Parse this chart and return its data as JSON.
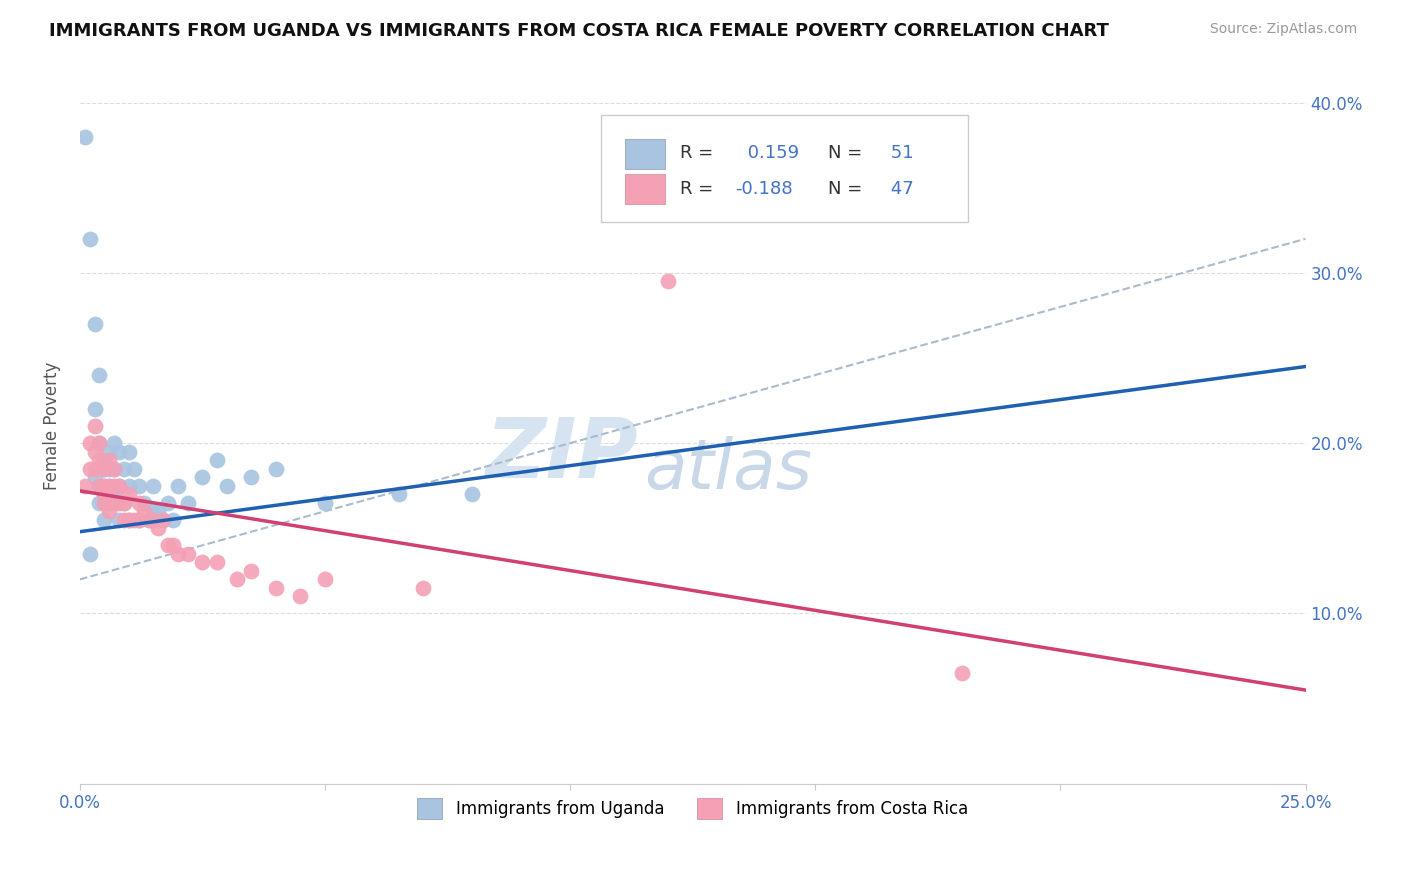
{
  "title": "IMMIGRANTS FROM UGANDA VS IMMIGRANTS FROM COSTA RICA FEMALE POVERTY CORRELATION CHART",
  "source": "Source: ZipAtlas.com",
  "ylabel": "Female Poverty",
  "y_ticks": [
    0.0,
    0.1,
    0.2,
    0.3,
    0.4
  ],
  "y_tick_labels": [
    "",
    "10.0%",
    "20.0%",
    "30.0%",
    "40.0%"
  ],
  "xlim": [
    0.0,
    0.25
  ],
  "ylim": [
    0.0,
    0.42
  ],
  "uganda_color": "#a8c4e0",
  "costa_rica_color": "#f4a0b5",
  "uganda_R": 0.159,
  "uganda_N": 51,
  "costa_rica_R": -0.188,
  "costa_rica_N": 47,
  "trend_line_color_gray": "#aabbcc",
  "trend_line_color_blue": "#2060b0",
  "trend_line_color_pink": "#d04070",
  "watermark_zip": "ZIP",
  "watermark_atlas": "atlas",
  "watermark_color": "#d5e4f0",
  "legend_label_uganda": "Immigrants from Uganda",
  "legend_label_costa_rica": "Immigrants from Costa Rica",
  "background_color": "#ffffff",
  "grid_color": "#dddddd",
  "uganda_x": [
    0.001,
    0.002,
    0.002,
    0.003,
    0.003,
    0.003,
    0.004,
    0.004,
    0.004,
    0.004,
    0.005,
    0.005,
    0.005,
    0.005,
    0.005,
    0.006,
    0.006,
    0.006,
    0.006,
    0.007,
    0.007,
    0.007,
    0.008,
    0.008,
    0.008,
    0.009,
    0.009,
    0.01,
    0.01,
    0.01,
    0.011,
    0.012,
    0.012,
    0.013,
    0.014,
    0.015,
    0.015,
    0.016,
    0.017,
    0.018,
    0.019,
    0.02,
    0.022,
    0.025,
    0.028,
    0.03,
    0.035,
    0.04,
    0.05,
    0.065,
    0.08
  ],
  "uganda_y": [
    0.38,
    0.32,
    0.135,
    0.27,
    0.22,
    0.18,
    0.24,
    0.2,
    0.175,
    0.165,
    0.19,
    0.185,
    0.175,
    0.165,
    0.155,
    0.195,
    0.185,
    0.175,
    0.165,
    0.2,
    0.185,
    0.17,
    0.195,
    0.175,
    0.155,
    0.185,
    0.165,
    0.195,
    0.175,
    0.155,
    0.185,
    0.175,
    0.155,
    0.165,
    0.155,
    0.175,
    0.16,
    0.16,
    0.155,
    0.165,
    0.155,
    0.175,
    0.165,
    0.18,
    0.19,
    0.175,
    0.18,
    0.185,
    0.165,
    0.17,
    0.17
  ],
  "costa_rica_x": [
    0.001,
    0.002,
    0.002,
    0.003,
    0.003,
    0.003,
    0.004,
    0.004,
    0.004,
    0.005,
    0.005,
    0.005,
    0.005,
    0.006,
    0.006,
    0.006,
    0.007,
    0.007,
    0.007,
    0.008,
    0.008,
    0.009,
    0.009,
    0.01,
    0.01,
    0.011,
    0.012,
    0.012,
    0.013,
    0.014,
    0.015,
    0.016,
    0.017,
    0.018,
    0.019,
    0.02,
    0.022,
    0.025,
    0.028,
    0.032,
    0.035,
    0.04,
    0.045,
    0.05,
    0.07,
    0.12,
    0.18
  ],
  "costa_rica_y": [
    0.175,
    0.2,
    0.185,
    0.21,
    0.195,
    0.185,
    0.2,
    0.19,
    0.175,
    0.185,
    0.175,
    0.17,
    0.165,
    0.19,
    0.175,
    0.16,
    0.185,
    0.175,
    0.165,
    0.175,
    0.165,
    0.165,
    0.155,
    0.17,
    0.155,
    0.155,
    0.165,
    0.155,
    0.16,
    0.155,
    0.155,
    0.15,
    0.155,
    0.14,
    0.14,
    0.135,
    0.135,
    0.13,
    0.13,
    0.12,
    0.125,
    0.115,
    0.11,
    0.12,
    0.115,
    0.295,
    0.065
  ]
}
